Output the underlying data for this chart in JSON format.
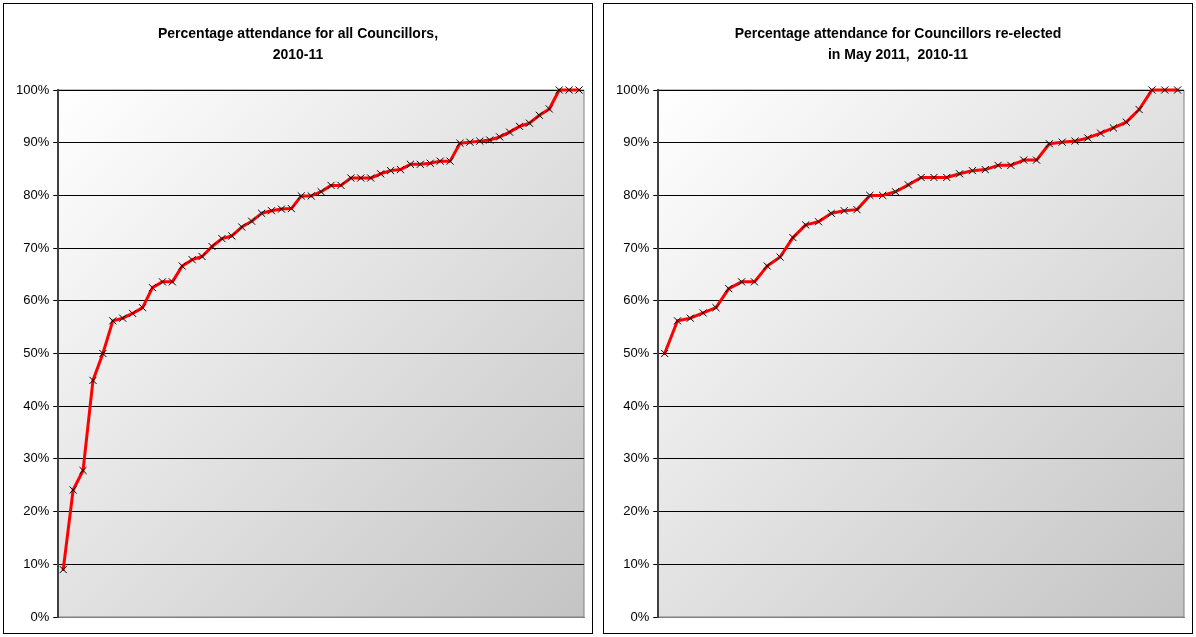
{
  "chart_data": [
    {
      "type": "line",
      "title": "Percentage attendance for all Councillors,\n2010-11",
      "categories": [
        null,
        null,
        null,
        null,
        null,
        null,
        null,
        null,
        null,
        null,
        null,
        null,
        null,
        null,
        null,
        null,
        null,
        null,
        null,
        null,
        null,
        null,
        null,
        null,
        null,
        null,
        null,
        null,
        null,
        null,
        null,
        null,
        null,
        null,
        null,
        null,
        null,
        null,
        null,
        null,
        null,
        null,
        null,
        null,
        null,
        null,
        null,
        null,
        null,
        null,
        null,
        null,
        null
      ],
      "series": [
        {
          "color": "#ff0000",
          "values": [
            9,
            24.1,
            27.8,
            44.9,
            50,
            56.2,
            56.7,
            57.6,
            58.7,
            62.5,
            63.6,
            63.6,
            66.6,
            67.8,
            68.4,
            70.3,
            71.8,
            72.3,
            74,
            75.1,
            76.6,
            77.1,
            77.4,
            77.5,
            79.9,
            79.9,
            80.7,
            81.9,
            81.9,
            83.3,
            83.3,
            83.3,
            84.1,
            84.7,
            84.9,
            85.9,
            85.9,
            86.1,
            86.5,
            86.5,
            89.9,
            90.1,
            90.3,
            90.5,
            91.1,
            92,
            93.1,
            93.7,
            95.2,
            96.4,
            100,
            100,
            100
          ]
        }
      ],
      "ylim": [
        0,
        100
      ],
      "yticks": [
        {
          "value": 0,
          "label": "0%"
        },
        {
          "value": 10,
          "label": "10%"
        },
        {
          "value": 20,
          "label": "20%"
        },
        {
          "value": 30,
          "label": "30%"
        },
        {
          "value": 40,
          "label": "40%"
        },
        {
          "value": 50,
          "label": "50%"
        },
        {
          "value": 60,
          "label": "60%"
        },
        {
          "value": 70,
          "label": "70%"
        },
        {
          "value": 80,
          "label": "80%"
        },
        {
          "value": 90,
          "label": "90%"
        },
        {
          "value": 100,
          "label": "100%"
        }
      ],
      "grid": "y",
      "marker": "cross",
      "line_style": "solid",
      "tick_labels": "y"
    },
    {
      "type": "line",
      "title": "Percentage attendance for Councillors re-elected\nin May 2011,  2010-11",
      "categories": [
        null,
        null,
        null,
        null,
        null,
        null,
        null,
        null,
        null,
        null,
        null,
        null,
        null,
        null,
        null,
        null,
        null,
        null,
        null,
        null,
        null,
        null,
        null,
        null,
        null,
        null,
        null,
        null,
        null,
        null,
        null,
        null,
        null,
        null,
        null,
        null,
        null,
        null,
        null,
        null,
        null
      ],
      "series": [
        {
          "color": "#ff0000",
          "values": [
            50,
            56.2,
            56.7,
            57.7,
            58.7,
            62.3,
            63.6,
            63.6,
            66.6,
            68.3,
            72,
            74.4,
            75,
            76.6,
            77.1,
            77.3,
            80,
            80,
            80.7,
            82,
            83.4,
            83.4,
            83.4,
            84.1,
            84.7,
            84.9,
            85.7,
            85.7,
            86.7,
            86.7,
            89.8,
            90.1,
            90.3,
            90.9,
            91.8,
            92.8,
            93.9,
            96.3,
            100,
            100,
            100
          ]
        }
      ],
      "ylim": [
        0,
        100
      ],
      "yticks": [
        {
          "value": 0,
          "label": "0%"
        },
        {
          "value": 10,
          "label": "10%"
        },
        {
          "value": 20,
          "label": "20%"
        },
        {
          "value": 30,
          "label": "30%"
        },
        {
          "value": 40,
          "label": "40%"
        },
        {
          "value": 50,
          "label": "50%"
        },
        {
          "value": 60,
          "label": "60%"
        },
        {
          "value": 70,
          "label": "70%"
        },
        {
          "value": 80,
          "label": "80%"
        },
        {
          "value": 90,
          "label": "90%"
        },
        {
          "value": 100,
          "label": "100%"
        }
      ],
      "grid": "y",
      "marker": "cross",
      "line_style": "solid",
      "tick_labels": "y"
    }
  ]
}
